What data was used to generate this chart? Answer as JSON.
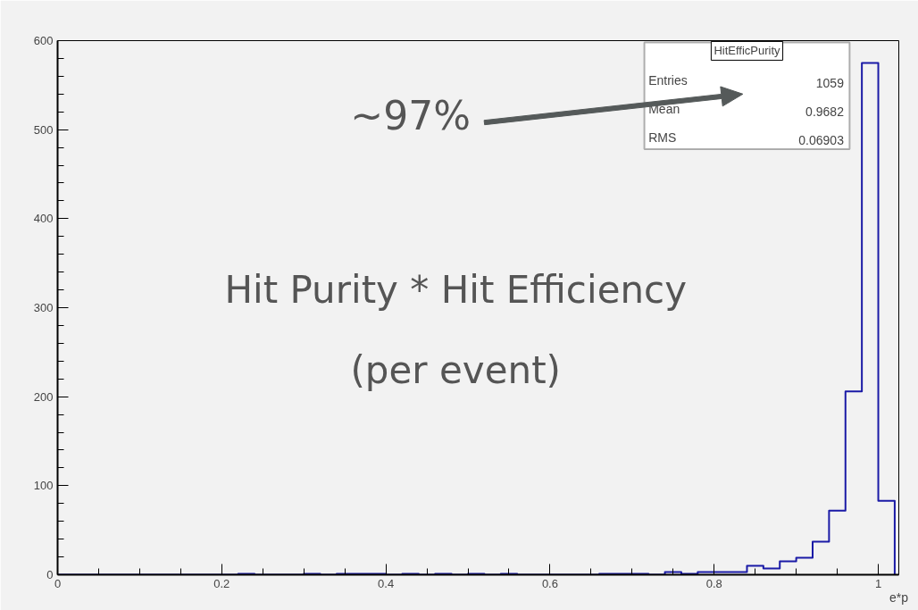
{
  "chart_data": {
    "type": "histogram",
    "xlabel": "e*p",
    "bins": [
      0,
      0.02,
      0.04,
      0.06,
      0.08,
      0.1,
      0.12,
      0.14,
      0.16,
      0.18,
      0.2,
      0.22,
      0.24,
      0.26,
      0.28,
      0.3,
      0.32,
      0.34,
      0.36,
      0.38,
      0.4,
      0.42,
      0.44,
      0.46,
      0.48,
      0.5,
      0.52,
      0.54,
      0.56,
      0.58,
      0.6,
      0.62,
      0.64,
      0.66,
      0.68,
      0.7,
      0.72,
      0.74,
      0.76,
      0.78,
      0.8,
      0.82,
      0.84,
      0.86,
      0.88,
      0.9,
      0.92,
      0.94,
      0.96,
      0.98,
      1.0,
      1.02
    ],
    "values": [
      0,
      0,
      0,
      0,
      0,
      0,
      0,
      0,
      0,
      0,
      0,
      1,
      0,
      0,
      0,
      1,
      0,
      1,
      1,
      1,
      0,
      1,
      0,
      1,
      0,
      1,
      0,
      1,
      0,
      0,
      0,
      0,
      0,
      1,
      1,
      1,
      0,
      3,
      1,
      3,
      3,
      3,
      10,
      7,
      15,
      19,
      37,
      72,
      206,
      575,
      83
    ],
    "color": "#1a1aa6",
    "xlim": [
      0,
      1.025
    ],
    "ylim": [
      0,
      600
    ],
    "xticks": [
      0,
      0.2,
      0.4,
      0.6,
      0.8,
      1
    ],
    "yticks": [
      0,
      100,
      200,
      300,
      400,
      500,
      600
    ],
    "grid": false,
    "annotations": [
      "HitEfficPurity",
      "Entries 1059",
      "Mean 0.9682",
      "RMS 0.06903",
      "~97%",
      "Hit Purity * Hit Efficiency",
      "(per event)"
    ]
  }
}
